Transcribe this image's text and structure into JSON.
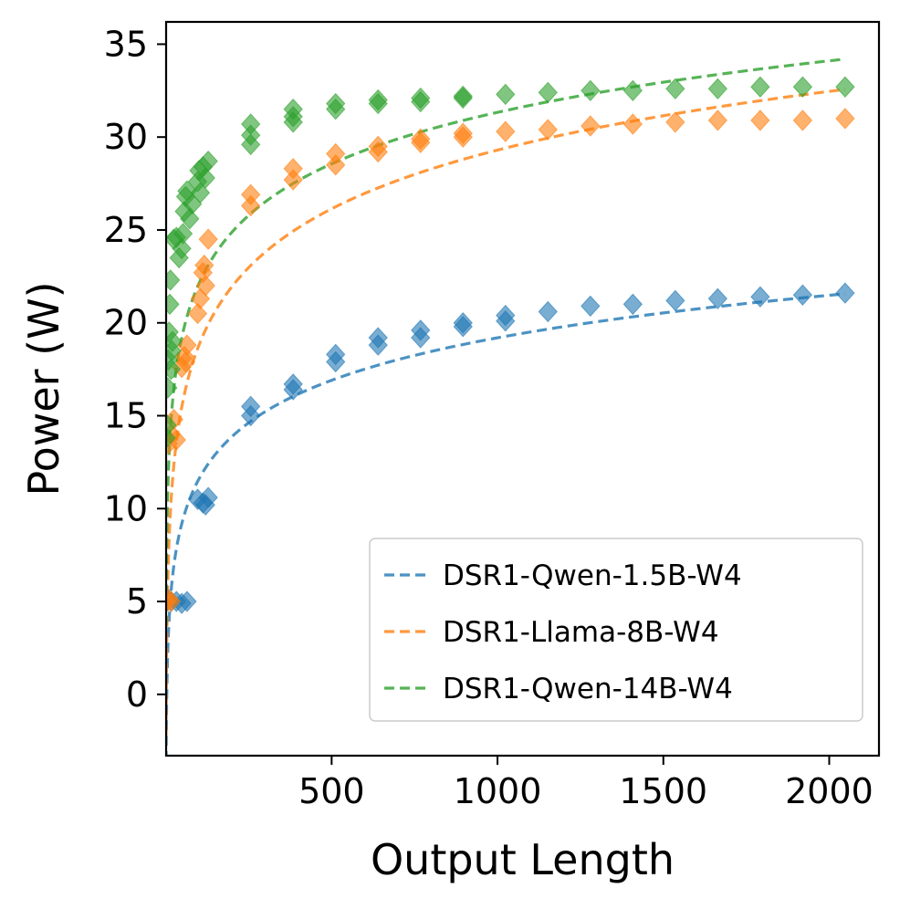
{
  "chart_data": {
    "type": "scatter",
    "xlabel": "Output Length",
    "ylabel": "Power (W)",
    "xlim": [
      1,
      2150
    ],
    "ylim": [
      -3.3,
      36.2
    ],
    "xticks": [
      500,
      1000,
      1500,
      2000
    ],
    "yticks": [
      0,
      5,
      10,
      15,
      20,
      25,
      30,
      35
    ],
    "grid": false,
    "legend_position": "lower-right",
    "series": [
      {
        "name": "DSR1-Qwen-1.5B-W4",
        "color": "#1f77b4",
        "marker": "diamond",
        "fit": {
          "type": "log",
          "a": -3.6,
          "b": 3.3
        },
        "points": [
          [
            1,
            5.0
          ],
          [
            8,
            5.1
          ],
          [
            16,
            5.0
          ],
          [
            32,
            5.0
          ],
          [
            48,
            4.9
          ],
          [
            64,
            5.0
          ],
          [
            96,
            10.5
          ],
          [
            112,
            10.3
          ],
          [
            128,
            10.6
          ],
          [
            120,
            10.2
          ],
          [
            256,
            15.5
          ],
          [
            256,
            15.0
          ],
          [
            384,
            16.7
          ],
          [
            384,
            16.4
          ],
          [
            512,
            18.3
          ],
          [
            512,
            17.9
          ],
          [
            640,
            19.2
          ],
          [
            640,
            18.8
          ],
          [
            768,
            19.6
          ],
          [
            768,
            19.2
          ],
          [
            896,
            20.0
          ],
          [
            896,
            19.8
          ],
          [
            1024,
            20.4
          ],
          [
            1024,
            20.1
          ],
          [
            1152,
            20.6
          ],
          [
            1280,
            20.9
          ],
          [
            1408,
            21.0
          ],
          [
            1536,
            21.2
          ],
          [
            1664,
            21.3
          ],
          [
            1792,
            21.4
          ],
          [
            1920,
            21.5
          ],
          [
            2048,
            21.6
          ]
        ]
      },
      {
        "name": "DSR1-Llama-8B-W4",
        "color": "#ff7f0e",
        "marker": "diamond",
        "fit": {
          "type": "log",
          "a": -2.2,
          "b": 4.56
        },
        "points": [
          [
            1,
            5.0
          ],
          [
            8,
            5.1
          ],
          [
            16,
            5.0
          ],
          [
            8,
            13.5
          ],
          [
            16,
            14.0
          ],
          [
            24,
            14.8
          ],
          [
            32,
            13.7
          ],
          [
            48,
            17.6
          ],
          [
            56,
            18.2
          ],
          [
            64,
            18.8
          ],
          [
            60,
            17.9
          ],
          [
            96,
            20.5
          ],
          [
            104,
            21.3
          ],
          [
            112,
            22.7
          ],
          [
            116,
            23.1
          ],
          [
            120,
            22.0
          ],
          [
            128,
            24.5
          ],
          [
            256,
            26.9
          ],
          [
            256,
            26.3
          ],
          [
            384,
            28.3
          ],
          [
            384,
            27.7
          ],
          [
            512,
            29.1
          ],
          [
            512,
            28.5
          ],
          [
            640,
            29.5
          ],
          [
            640,
            29.2
          ],
          [
            768,
            29.9
          ],
          [
            768,
            29.7
          ],
          [
            896,
            30.2
          ],
          [
            896,
            30.0
          ],
          [
            1024,
            30.3
          ],
          [
            1152,
            30.4
          ],
          [
            1280,
            30.6
          ],
          [
            1408,
            30.7
          ],
          [
            1536,
            30.8
          ],
          [
            1664,
            30.9
          ],
          [
            1792,
            30.9
          ],
          [
            1920,
            30.9
          ],
          [
            2048,
            31.0
          ]
        ]
      },
      {
        "name": "DSR1-Qwen-14B-W4",
        "color": "#2ca02c",
        "marker": "diamond",
        "fit": {
          "type": "log",
          "a": 3.7,
          "b": 4.0
        },
        "points": [
          [
            1,
            13.8
          ],
          [
            4,
            14.5
          ],
          [
            6,
            16.5
          ],
          [
            8,
            18.0
          ],
          [
            10,
            19.5
          ],
          [
            12,
            21.0
          ],
          [
            14,
            22.3
          ],
          [
            16,
            17.5
          ],
          [
            18,
            18.5
          ],
          [
            20,
            19.0
          ],
          [
            24,
            24.5
          ],
          [
            32,
            24.6
          ],
          [
            40,
            23.5
          ],
          [
            48,
            24.0
          ],
          [
            52,
            24.8
          ],
          [
            56,
            26.0
          ],
          [
            60,
            26.8
          ],
          [
            64,
            27.1
          ],
          [
            72,
            25.6
          ],
          [
            80,
            26.4
          ],
          [
            96,
            27.6
          ],
          [
            100,
            28.2
          ],
          [
            104,
            27.0
          ],
          [
            112,
            28.4
          ],
          [
            120,
            27.8
          ],
          [
            128,
            28.7
          ],
          [
            256,
            30.7
          ],
          [
            256,
            30.1
          ],
          [
            256,
            29.6
          ],
          [
            384,
            31.5
          ],
          [
            384,
            31.1
          ],
          [
            384,
            30.8
          ],
          [
            512,
            31.8
          ],
          [
            512,
            31.5
          ],
          [
            640,
            32.0
          ],
          [
            640,
            31.8
          ],
          [
            768,
            32.1
          ],
          [
            768,
            31.9
          ],
          [
            896,
            32.2
          ],
          [
            896,
            32.1
          ],
          [
            1024,
            32.3
          ],
          [
            1152,
            32.4
          ],
          [
            1280,
            32.5
          ],
          [
            1408,
            32.5
          ],
          [
            1536,
            32.6
          ],
          [
            1664,
            32.6
          ],
          [
            1792,
            32.7
          ],
          [
            1920,
            32.7
          ],
          [
            2048,
            32.7
          ]
        ]
      }
    ]
  }
}
